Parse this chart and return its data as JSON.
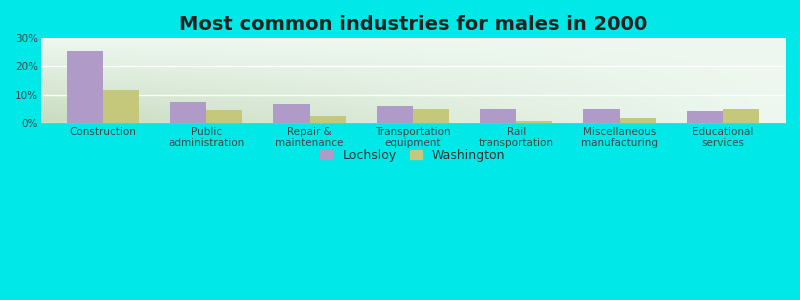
{
  "title": "Most common industries for males in 2000",
  "categories": [
    "Construction",
    "Public\nadministration",
    "Repair &\nmaintenance",
    "Transportation\nequipment",
    "Rail\ntransportation",
    "Miscellaneous\nmanufacturing",
    "Educational\nservices"
  ],
  "lochsloy": [
    25.5,
    7.5,
    6.5,
    6.0,
    5.0,
    5.0,
    4.0
  ],
  "washington": [
    11.5,
    4.5,
    2.5,
    5.0,
    0.5,
    1.5,
    5.0
  ],
  "lochsloy_color": "#b09ac8",
  "washington_color": "#c5c87a",
  "outer_bg": "#00e8e8",
  "plot_bg_topleft": "#d0e8c8",
  "plot_bg_topright": "#eef8f0",
  "plot_bg_bottomleft": "#c8dcc0",
  "plot_bg_bottomright": "#f0f8e8",
  "ylim": [
    0,
    30
  ],
  "yticks": [
    0,
    10,
    20,
    30
  ],
  "ytick_labels": [
    "0%",
    "10%",
    "20%",
    "30%"
  ],
  "title_fontsize": 14,
  "label_fontsize": 7.5,
  "legend_fontsize": 9,
  "bar_width": 0.35
}
